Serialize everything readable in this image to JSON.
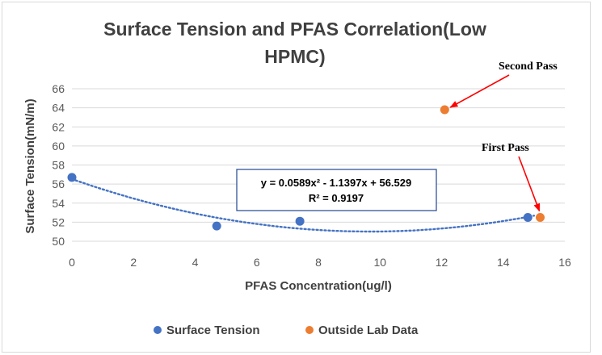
{
  "chart_data": {
    "type": "scatter",
    "title_lines": [
      "Surface Tension and PFAS Correlation(Low",
      "HPMC)"
    ],
    "xlabel": "PFAS Concentration(ug/l)",
    "ylabel": "Surface Tension(mN/m)",
    "xlim": [
      0,
      16
    ],
    "ylim": [
      50,
      66
    ],
    "x_ticks": [
      0,
      2,
      4,
      6,
      8,
      10,
      12,
      14,
      16
    ],
    "y_ticks": [
      50,
      52,
      54,
      56,
      58,
      60,
      62,
      64,
      66
    ],
    "grid": "horizontal",
    "legend_position": "bottom",
    "series": [
      {
        "name": "Surface Tension",
        "color": "#4472c4",
        "points": [
          {
            "x": 0,
            "y": 56.7
          },
          {
            "x": 4.7,
            "y": 51.6
          },
          {
            "x": 7.4,
            "y": 52.1
          },
          {
            "x": 14.8,
            "y": 52.5
          }
        ]
      },
      {
        "name": "Outside Lab Data",
        "color": "#ed7d31",
        "points": [
          {
            "x": 12.1,
            "y": 63.8
          },
          {
            "x": 15.2,
            "y": 52.5
          }
        ]
      }
    ],
    "trendline": {
      "type": "polynomial",
      "color": "#4472c4",
      "coefficients": [
        0.0589,
        -1.1397,
        56.529
      ],
      "x_range": [
        0,
        15.0
      ],
      "equation": "y = 0.0589x² - 1.1397x + 56.529",
      "r_squared": "R² = 0.9197"
    },
    "annotations": [
      {
        "text": "Second Pass",
        "target_x": 12.1,
        "target_y": 63.8
      },
      {
        "text": "First Pass",
        "target_x": 15.2,
        "target_y": 52.5
      }
    ]
  }
}
